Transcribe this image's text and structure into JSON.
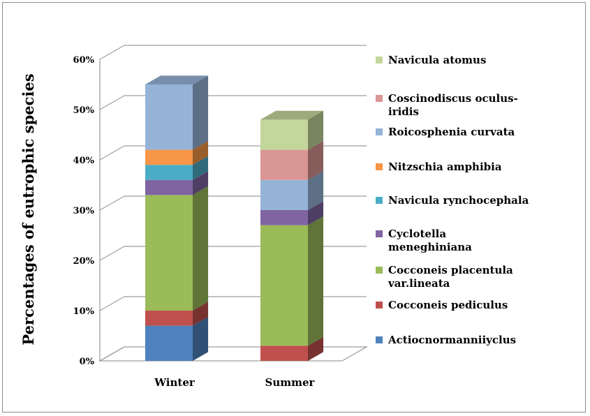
{
  "chart_data": {
    "type": "bar",
    "stacked": true,
    "three_d": true,
    "title": "",
    "xlabel": "",
    "ylabel": "Percentages of eutrophic species",
    "ylim": [
      0,
      0.6
    ],
    "yticks": [
      "0%",
      "10%",
      "20%",
      "30%",
      "40%",
      "50%",
      "60%"
    ],
    "categories": [
      "Winter",
      "Summer"
    ],
    "legend_position": "right",
    "grid": true,
    "series": [
      {
        "name": "Actiocnormanniiyclus",
        "color": "#4f81bd",
        "values": [
          0.07,
          0.0
        ]
      },
      {
        "name": "Cocconeis pediculus",
        "color": "#c0504d",
        "values": [
          0.03,
          0.03
        ]
      },
      {
        "name": "Cocconeis placentula var.lineata",
        "color": "#9bbb59",
        "values": [
          0.23,
          0.24
        ]
      },
      {
        "name": "Cyclotella meneghiniana",
        "color": "#8064a2",
        "values": [
          0.03,
          0.03
        ]
      },
      {
        "name": "Navicula rynchocephala",
        "color": "#4bacc6",
        "values": [
          0.03,
          0.0
        ]
      },
      {
        "name": "Nitzschia amphibia",
        "color": "#f79646",
        "values": [
          0.03,
          0.0
        ]
      },
      {
        "name": "Roicosphenia curvata",
        "color": "#95b3d7",
        "values": [
          0.13,
          0.06
        ]
      },
      {
        "name": "Coscinodiscus oculus-iridis",
        "color": "#da9694",
        "values": [
          0.0,
          0.06
        ]
      },
      {
        "name": "Navicula atomus",
        "color": "#c3d69b",
        "values": [
          0.0,
          0.06
        ]
      }
    ]
  }
}
